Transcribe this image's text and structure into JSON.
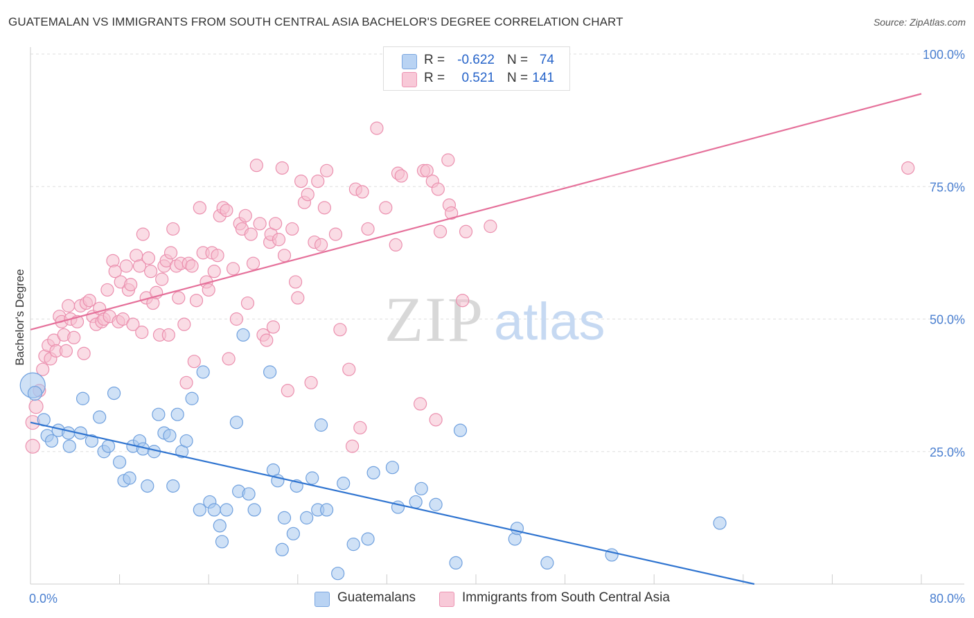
{
  "header": {
    "title": "GUATEMALAN VS IMMIGRANTS FROM SOUTH CENTRAL ASIA BACHELOR'S DEGREE CORRELATION CHART",
    "source": "Source: ZipAtlas.com"
  },
  "watermark": {
    "zip": "ZIP",
    "atlas": "atlas"
  },
  "legend": {
    "rows": [
      {
        "r_label": "R =",
        "r_value": "-0.622",
        "n_label": "N =",
        "n_value": "74"
      },
      {
        "r_label": "R =",
        "r_value": "0.521",
        "n_label": "N =",
        "n_value": "141"
      }
    ]
  },
  "bottom_legend": {
    "series1": "Guatemalans",
    "series2": "Immigrants from South Central Asia"
  },
  "colors": {
    "blue_fill": "#a8c8ee",
    "blue_stroke": "#6fa0de",
    "blue_line": "#2f74d0",
    "pink_fill": "#f6bfd0",
    "pink_stroke": "#eb8fae",
    "pink_line": "#e5709a",
    "axis_label": "#4a7fd0",
    "grid": "#dddddd"
  },
  "chart_data": {
    "type": "scatter",
    "title": "GUATEMALAN VS IMMIGRANTS FROM SOUTH CENTRAL ASIA BACHELOR'S DEGREE CORRELATION CHART",
    "xlabel": "",
    "ylabel": "Bachelor's Degree",
    "xlim": [
      0,
      80
    ],
    "ylim": [
      0,
      100
    ],
    "x_tick_labels": [
      "0.0%",
      "80.0%"
    ],
    "y_tick_labels": [
      "25.0%",
      "50.0%",
      "75.0%",
      "100.0%"
    ],
    "y_ticks": [
      25,
      50,
      75,
      100
    ],
    "series": [
      {
        "name": "Guatemalans",
        "R": -0.622,
        "N": 74,
        "trend": {
          "x0": 0,
          "y0": 30.5,
          "x1": 65,
          "y1": 0
        },
        "points": [
          [
            0.2,
            37.5,
            18
          ],
          [
            0.4,
            36,
            10
          ],
          [
            1.2,
            31,
            9
          ],
          [
            1.5,
            28,
            9
          ],
          [
            2.5,
            29,
            9
          ],
          [
            1.9,
            27,
            9
          ],
          [
            3.4,
            28.5,
            9
          ],
          [
            4.5,
            28.5,
            9
          ],
          [
            3.5,
            26,
            9
          ],
          [
            4.7,
            35,
            9
          ],
          [
            5.5,
            27,
            9
          ],
          [
            6.2,
            31.5,
            9
          ],
          [
            6.6,
            25,
            9
          ],
          [
            7.0,
            26,
            9
          ],
          [
            7.5,
            36,
            9
          ],
          [
            8.0,
            23,
            9
          ],
          [
            8.4,
            19.5,
            9
          ],
          [
            8.9,
            20,
            9
          ],
          [
            9.2,
            26,
            9
          ],
          [
            9.8,
            27,
            9
          ],
          [
            10.1,
            25.5,
            9
          ],
          [
            10.5,
            18.5,
            9
          ],
          [
            11.1,
            25,
            9
          ],
          [
            11.5,
            32,
            9
          ],
          [
            12.0,
            28.5,
            9
          ],
          [
            12.5,
            28,
            9
          ],
          [
            12.8,
            18.5,
            9
          ],
          [
            13.2,
            32,
            9
          ],
          [
            13.6,
            25,
            9
          ],
          [
            14.0,
            27,
            9
          ],
          [
            14.5,
            35,
            9
          ],
          [
            15.5,
            40,
            9
          ],
          [
            15.2,
            14,
            9
          ],
          [
            16.1,
            15.5,
            9
          ],
          [
            16.5,
            14,
            9
          ],
          [
            17.0,
            11,
            9
          ],
          [
            17.2,
            8,
            9
          ],
          [
            17.6,
            14,
            9
          ],
          [
            18.5,
            30.5,
            9
          ],
          [
            18.7,
            17.5,
            9
          ],
          [
            19.1,
            47,
            9
          ],
          [
            19.6,
            17,
            9
          ],
          [
            20.1,
            14,
            9
          ],
          [
            21.5,
            40,
            9
          ],
          [
            21.8,
            21.5,
            9
          ],
          [
            22.2,
            19.5,
            9
          ],
          [
            22.6,
            6.5,
            9
          ],
          [
            22.8,
            12.5,
            9
          ],
          [
            23.6,
            9.5,
            9
          ],
          [
            23.9,
            18.5,
            9
          ],
          [
            24.8,
            12.5,
            9
          ],
          [
            25.3,
            20,
            9
          ],
          [
            25.8,
            14,
            9
          ],
          [
            26.1,
            30,
            9
          ],
          [
            26.6,
            14,
            9
          ],
          [
            27.6,
            2,
            9
          ],
          [
            28.1,
            19,
            9
          ],
          [
            29.0,
            7.5,
            9
          ],
          [
            30.3,
            8.5,
            9
          ],
          [
            30.8,
            21,
            9
          ],
          [
            32.5,
            22,
            9
          ],
          [
            33.0,
            14.5,
            9
          ],
          [
            34.6,
            15.5,
            9
          ],
          [
            35.1,
            18,
            9
          ],
          [
            36.4,
            15,
            9
          ],
          [
            38.2,
            4,
            9
          ],
          [
            38.6,
            29,
            9
          ],
          [
            43.5,
            8.5,
            9
          ],
          [
            43.7,
            10.5,
            9
          ],
          [
            46.4,
            4,
            9
          ],
          [
            52.2,
            5.5,
            9
          ],
          [
            61.9,
            11.5,
            9
          ]
        ]
      },
      {
        "name": "Immigrants from South Central Asia",
        "R": 0.521,
        "N": 141,
        "trend": {
          "x0": 0,
          "y0": 48,
          "x1": 80,
          "y1": 92.5
        },
        "points": [
          [
            0.2,
            26,
            10
          ],
          [
            0.2,
            30.5,
            10
          ],
          [
            0.5,
            33.5,
            10
          ],
          [
            0.8,
            36.5,
            9
          ],
          [
            1.1,
            40.5,
            9
          ],
          [
            1.3,
            43,
            9
          ],
          [
            1.6,
            45,
            9
          ],
          [
            1.8,
            42.5,
            9
          ],
          [
            2.1,
            46,
            9
          ],
          [
            2.3,
            44,
            9
          ],
          [
            2.6,
            50.5,
            9
          ],
          [
            2.8,
            49.5,
            9
          ],
          [
            3.0,
            47,
            9
          ],
          [
            3.2,
            44,
            9
          ],
          [
            3.4,
            52.5,
            9
          ],
          [
            3.6,
            50,
            9
          ],
          [
            3.9,
            46.5,
            9
          ],
          [
            4.2,
            49.5,
            9
          ],
          [
            4.5,
            52.5,
            9
          ],
          [
            4.8,
            43.5,
            9
          ],
          [
            5.0,
            53,
            9
          ],
          [
            5.3,
            53.5,
            9
          ],
          [
            5.6,
            50.5,
            9
          ],
          [
            5.9,
            49,
            9
          ],
          [
            6.2,
            52,
            9
          ],
          [
            6.4,
            49.5,
            9
          ],
          [
            6.6,
            50,
            9
          ],
          [
            6.9,
            55.5,
            9
          ],
          [
            7.1,
            50.5,
            9
          ],
          [
            7.4,
            61,
            9
          ],
          [
            7.6,
            59,
            9
          ],
          [
            7.9,
            49.5,
            9
          ],
          [
            8.1,
            57,
            9
          ],
          [
            8.3,
            50,
            9
          ],
          [
            8.6,
            60,
            9
          ],
          [
            8.8,
            55.5,
            9
          ],
          [
            9.0,
            56.5,
            9
          ],
          [
            9.2,
            49,
            9
          ],
          [
            9.5,
            62,
            9
          ],
          [
            9.8,
            60,
            9
          ],
          [
            10.0,
            47.5,
            9
          ],
          [
            10.1,
            66,
            9
          ],
          [
            10.4,
            54,
            9
          ],
          [
            10.6,
            61.5,
            9
          ],
          [
            10.8,
            59,
            9
          ],
          [
            11.0,
            53,
            9
          ],
          [
            11.3,
            55,
            9
          ],
          [
            11.6,
            47,
            9
          ],
          [
            11.8,
            57.5,
            9
          ],
          [
            12.0,
            60,
            9
          ],
          [
            12.2,
            61,
            9
          ],
          [
            12.4,
            47,
            9
          ],
          [
            12.6,
            62.5,
            9
          ],
          [
            12.8,
            67,
            9
          ],
          [
            13.1,
            60,
            9
          ],
          [
            13.3,
            54,
            9
          ],
          [
            13.5,
            60.5,
            9
          ],
          [
            13.8,
            49,
            9
          ],
          [
            14.0,
            38,
            9
          ],
          [
            14.2,
            60.5,
            9
          ],
          [
            14.5,
            60,
            9
          ],
          [
            14.7,
            42,
            9
          ],
          [
            14.9,
            53.5,
            9
          ],
          [
            15.2,
            71,
            9
          ],
          [
            15.5,
            62.5,
            9
          ],
          [
            15.8,
            57,
            9
          ],
          [
            16.0,
            55.5,
            9
          ],
          [
            16.3,
            62.5,
            9
          ],
          [
            16.5,
            59,
            9
          ],
          [
            16.8,
            62,
            9
          ],
          [
            17.0,
            69.5,
            9
          ],
          [
            17.3,
            71,
            9
          ],
          [
            17.6,
            70.5,
            9
          ],
          [
            17.8,
            42.5,
            9
          ],
          [
            18.2,
            59.5,
            9
          ],
          [
            18.5,
            50,
            9
          ],
          [
            18.8,
            68,
            9
          ],
          [
            19.0,
            67,
            9
          ],
          [
            19.3,
            69.5,
            9
          ],
          [
            19.5,
            53,
            9
          ],
          [
            19.8,
            66,
            9
          ],
          [
            20.0,
            60.5,
            9
          ],
          [
            20.3,
            79,
            9
          ],
          [
            20.6,
            68,
            9
          ],
          [
            20.9,
            47,
            9
          ],
          [
            21.2,
            46,
            9
          ],
          [
            21.5,
            64.5,
            9
          ],
          [
            21.6,
            66,
            9
          ],
          [
            21.8,
            48.5,
            9
          ],
          [
            22.0,
            68,
            9
          ],
          [
            22.3,
            65,
            9
          ],
          [
            22.6,
            78.5,
            9
          ],
          [
            22.8,
            62,
            9
          ],
          [
            23.1,
            36.5,
            9
          ],
          [
            23.5,
            67,
            9
          ],
          [
            23.8,
            57,
            9
          ],
          [
            24.0,
            54,
            9
          ],
          [
            24.3,
            76,
            9
          ],
          [
            24.6,
            72,
            9
          ],
          [
            24.9,
            73.5,
            9
          ],
          [
            25.2,
            38,
            9
          ],
          [
            25.5,
            64.5,
            9
          ],
          [
            25.8,
            76,
            9
          ],
          [
            26.1,
            64,
            9
          ],
          [
            26.4,
            71,
            9
          ],
          [
            26.6,
            78,
            9
          ],
          [
            27.4,
            66,
            9
          ],
          [
            27.8,
            48,
            9
          ],
          [
            28.6,
            40.5,
            9
          ],
          [
            28.9,
            26,
            9
          ],
          [
            29.2,
            74.5,
            9
          ],
          [
            29.6,
            29.5,
            9
          ],
          [
            29.8,
            74,
            9
          ],
          [
            30.3,
            67,
            9
          ],
          [
            31.1,
            86,
            9
          ],
          [
            31.9,
            71,
            9
          ],
          [
            32.8,
            64,
            9
          ],
          [
            33.0,
            77.5,
            9
          ],
          [
            33.3,
            77,
            9
          ],
          [
            35.0,
            34,
            9
          ],
          [
            35.3,
            78,
            9
          ],
          [
            35.6,
            78,
            9
          ],
          [
            36.1,
            76,
            9
          ],
          [
            36.4,
            31,
            9
          ],
          [
            36.6,
            74.5,
            9
          ],
          [
            36.8,
            66.5,
            9
          ],
          [
            37.5,
            80,
            9
          ],
          [
            37.6,
            71.5,
            9
          ],
          [
            37.8,
            70,
            9
          ],
          [
            38.8,
            53.5,
            9
          ],
          [
            39.1,
            66.5,
            9
          ],
          [
            41.3,
            67.5,
            9
          ],
          [
            78.8,
            78.5,
            9
          ]
        ]
      }
    ]
  }
}
